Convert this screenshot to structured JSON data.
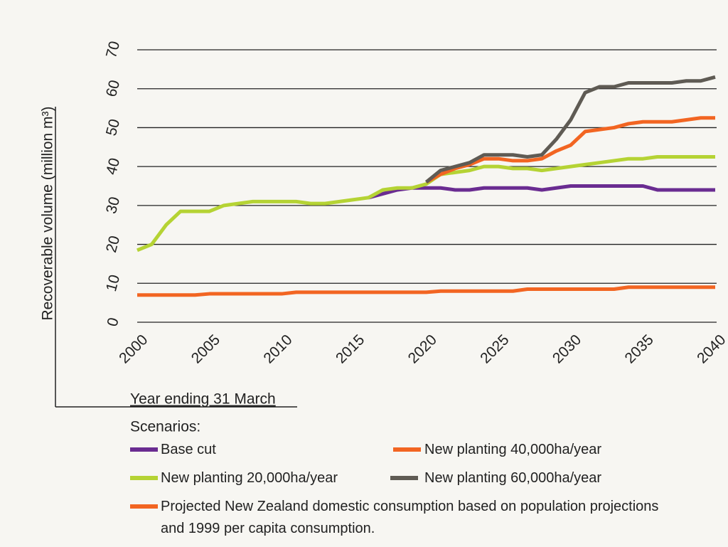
{
  "chart_data": {
    "type": "line",
    "y_label": "Recoverable volume (million m³)",
    "x_label": "Year ending 31 March",
    "legend_title": "Scenarios:",
    "x": [
      2000,
      2001,
      2002,
      2003,
      2004,
      2005,
      2006,
      2007,
      2008,
      2009,
      2010,
      2011,
      2012,
      2013,
      2014,
      2015,
      2016,
      2017,
      2018,
      2019,
      2020,
      2021,
      2022,
      2023,
      2024,
      2025,
      2026,
      2027,
      2028,
      2029,
      2030,
      2031,
      2032,
      2033,
      2034,
      2035,
      2036,
      2037,
      2038,
      2039,
      2040
    ],
    "series": [
      {
        "name": "Projected New Zealand domestic consumption based on population projections and 1999 per capita consumption.",
        "color": "#f26522",
        "values": [
          7,
          7,
          7,
          7,
          7,
          7.3,
          7.3,
          7.3,
          7.3,
          7.3,
          7.3,
          7.7,
          7.7,
          7.7,
          7.7,
          7.7,
          7.7,
          7.7,
          7.7,
          7.7,
          7.7,
          8,
          8,
          8,
          8,
          8,
          8,
          8.5,
          8.5,
          8.5,
          8.5,
          8.5,
          8.5,
          8.5,
          9,
          9,
          9,
          9,
          9,
          9,
          9
        ]
      },
      {
        "name": "Base cut",
        "color": "#6a2c91",
        "values": [
          null,
          null,
          null,
          null,
          null,
          null,
          null,
          null,
          null,
          null,
          null,
          null,
          null,
          null,
          null,
          null,
          32,
          33,
          34,
          34.5,
          34.5,
          34.5,
          34,
          34,
          34.5,
          34.5,
          34.5,
          34.5,
          34,
          34.5,
          35,
          35,
          35,
          35,
          35,
          35,
          34,
          34,
          34,
          34,
          34
        ]
      },
      {
        "name": "New planting 20,000ha/year",
        "color": "#b5d334",
        "values": [
          18.5,
          20,
          25,
          28.5,
          28.5,
          28.5,
          30,
          30.5,
          31,
          31,
          31,
          31,
          30.5,
          30.5,
          31,
          31.5,
          32,
          34,
          34.5,
          34.5,
          35.5,
          38,
          38.5,
          39,
          40,
          40,
          39.5,
          39.5,
          39,
          39.5,
          40,
          40.5,
          41,
          41.5,
          42,
          42,
          42.5,
          42.5,
          42.5,
          42.5,
          42.5
        ]
      },
      {
        "name": "New planting 40,000ha/year",
        "color": "#f26522",
        "values": [
          null,
          null,
          null,
          null,
          null,
          null,
          null,
          null,
          null,
          null,
          null,
          null,
          null,
          null,
          null,
          null,
          null,
          null,
          null,
          null,
          36,
          38,
          39.5,
          40.5,
          42,
          42,
          41.5,
          41.5,
          42,
          44,
          45.5,
          49,
          49.5,
          50,
          51,
          51.5,
          51.5,
          51.5,
          52,
          52.5,
          52.5
        ]
      },
      {
        "name": "New planting 60,000ha/year",
        "color": "#5f5b54",
        "values": [
          null,
          null,
          null,
          null,
          null,
          null,
          null,
          null,
          null,
          null,
          null,
          null,
          null,
          null,
          null,
          null,
          null,
          null,
          null,
          null,
          36,
          39,
          40,
          41,
          43,
          43,
          43,
          42.5,
          43,
          47,
          52,
          59,
          60.5,
          60.5,
          61.5,
          61.5,
          61.5,
          61.5,
          62,
          62,
          63
        ]
      }
    ],
    "xlim": [
      2000,
      2040
    ],
    "xticks": [
      2000,
      2005,
      2010,
      2015,
      2020,
      2025,
      2030,
      2035,
      2040
    ],
    "ylim": [
      0,
      70
    ],
    "yticks": [
      0,
      10,
      20,
      30,
      40,
      50,
      60,
      70
    ],
    "grid": true
  }
}
